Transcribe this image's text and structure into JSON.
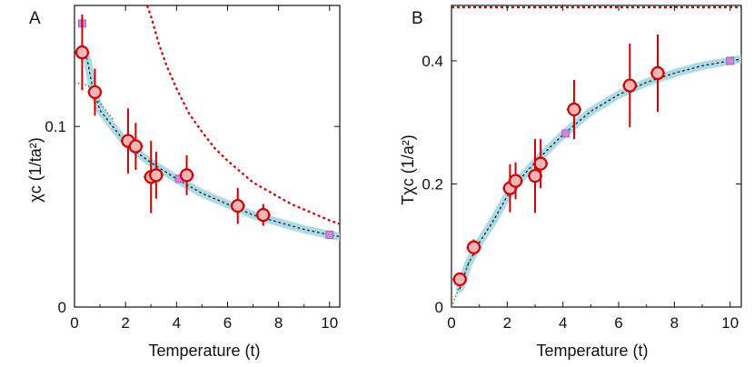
{
  "chart_data": [
    {
      "panel": "A",
      "type": "scatter",
      "xlabel": "Temperature (t)",
      "ylabel": "χc (1/ta²)",
      "xlim": [
        0,
        10.4
      ],
      "ylim": [
        0,
        0.167
      ],
      "x_ticks": [
        0,
        2,
        4,
        6,
        8,
        10
      ],
      "y_ticks": [
        0,
        0.1
      ],
      "y_tick_labels": [
        "0",
        "0.1"
      ],
      "series": [
        {
          "kind": "points_with_error",
          "color": "#cc0000",
          "fill": "#f4b6b6",
          "x": [
            0.3,
            0.8,
            2.1,
            2.4,
            3.0,
            3.2,
            4.4,
            6.4,
            7.4
          ],
          "y": [
            0.141,
            0.119,
            0.092,
            0.089,
            0.072,
            0.073,
            0.073,
            0.056,
            0.051
          ],
          "err": [
            0.021,
            0.013,
            0.018,
            0.013,
            0.02,
            0.013,
            0.011,
            0.01,
            0.006
          ]
        },
        {
          "kind": "squares",
          "color": "#cc88dd",
          "x": [
            0.3,
            4.1,
            10.0
          ],
          "y": [
            0.157,
            0.071,
            0.04
          ]
        },
        {
          "kind": "dotted_curve",
          "color": "#cc0000",
          "x": [
            2.85,
            3.0,
            3.3,
            3.6,
            4.0,
            4.5,
            5.0,
            5.5,
            6.0,
            6.5,
            7.0,
            7.5,
            8.0,
            8.5,
            9.0,
            9.5,
            10.0,
            10.4
          ],
          "y": [
            0.167,
            0.161,
            0.146,
            0.134,
            0.121,
            0.107,
            0.097,
            0.088,
            0.081,
            0.075,
            0.069,
            0.065,
            0.061,
            0.057,
            0.054,
            0.051,
            0.048,
            0.046
          ]
        },
        {
          "kind": "band_curve",
          "color": "#9fd3e2",
          "x": [
            0.3,
            0.5,
            0.7,
            1.0,
            1.5,
            2.0,
            2.5,
            3.0,
            4.0,
            5.0,
            6.0,
            7.0,
            8.0,
            9.0,
            10.0,
            10.4
          ],
          "y": [
            0.143,
            0.137,
            0.122,
            0.109,
            0.1,
            0.091,
            0.085,
            0.08,
            0.071,
            0.063,
            0.057,
            0.051,
            0.047,
            0.043,
            0.04,
            0.039
          ]
        },
        {
          "kind": "green_curve",
          "color": "#2e8b2e",
          "x": [
            0.0,
            0.3,
            0.6,
            1.0,
            1.5
          ],
          "y": [
            0.124,
            0.124,
            0.122,
            0.113,
            0.104
          ]
        }
      ]
    },
    {
      "panel": "B",
      "type": "scatter",
      "xlabel": "Temperature (t)",
      "ylabel": "Tχc (1/a²)",
      "xlim": [
        0,
        10.4
      ],
      "ylim": [
        0,
        0.49
      ],
      "x_ticks": [
        0,
        2,
        4,
        6,
        8,
        10
      ],
      "y_ticks": [
        0,
        0.2,
        0.4
      ],
      "y_tick_labels": [
        "0",
        "0.2",
        "0.4"
      ],
      "series": [
        {
          "kind": "points_with_error",
          "color": "#cc0000",
          "fill": "#f4b6b6",
          "x": [
            0.3,
            0.8,
            2.1,
            2.3,
            3.0,
            3.2,
            4.4,
            6.4,
            7.4
          ],
          "y": [
            0.045,
            0.097,
            0.193,
            0.205,
            0.213,
            0.233,
            0.321,
            0.36,
            0.38
          ],
          "err": [
            0.008,
            0.013,
            0.039,
            0.03,
            0.06,
            0.04,
            0.048,
            0.068,
            0.063
          ]
        },
        {
          "kind": "squares",
          "color": "#cc88dd",
          "x": [
            4.1,
            10.0
          ],
          "y": [
            0.282,
            0.4
          ]
        },
        {
          "kind": "hline",
          "color": "#cc0000",
          "y": 0.487
        },
        {
          "kind": "band_curve",
          "color": "#9fd3e2",
          "x": [
            0.3,
            0.6,
            1.0,
            1.5,
            2.0,
            2.5,
            3.0,
            3.5,
            4.0,
            5.0,
            6.0,
            7.0,
            8.0,
            9.0,
            10.0,
            10.4
          ],
          "y": [
            0.03,
            0.07,
            0.105,
            0.14,
            0.18,
            0.21,
            0.235,
            0.258,
            0.28,
            0.318,
            0.345,
            0.365,
            0.38,
            0.392,
            0.4,
            0.403
          ]
        },
        {
          "kind": "green_curve",
          "color": "#2e8b2e",
          "x": [
            0.0,
            0.3,
            0.6,
            1.0
          ],
          "y": [
            0.0,
            0.035,
            0.07,
            0.105
          ]
        }
      ]
    }
  ]
}
